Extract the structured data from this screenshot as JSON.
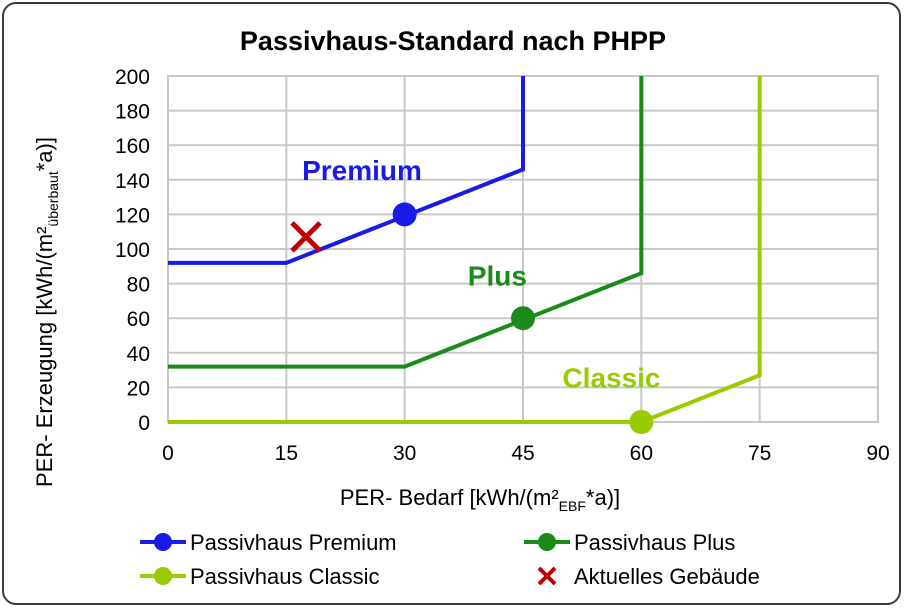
{
  "chart_data": {
    "type": "line",
    "title": "Passivhaus-Standard nach PHPP",
    "xlabel": {
      "main": "PER- Bedarf [kWh/(m²",
      "sub": "EBF",
      "tail": "*a)]"
    },
    "ylabel": {
      "main": "PER- Erzeugung [kWh/(m²",
      "sub": "überbaut",
      "tail": "*a)]"
    },
    "xlim": [
      0,
      90
    ],
    "ylim": [
      0,
      200
    ],
    "x_ticks": [
      0,
      15,
      30,
      45,
      60,
      75,
      90
    ],
    "y_ticks": [
      0,
      20,
      40,
      60,
      80,
      100,
      120,
      140,
      160,
      180,
      200
    ],
    "x_tick_labels": [
      "0",
      "15",
      "30",
      "45",
      "60",
      "75",
      "90"
    ],
    "y_tick_labels": [
      "0",
      "20",
      "40",
      "60",
      "80",
      "100",
      "120",
      "140",
      "160",
      "180",
      "200"
    ],
    "grid": true,
    "legend_position": "bottom",
    "series": [
      {
        "name": "Passivhaus Premium",
        "color": "#1a1ae6",
        "points": [
          [
            0,
            92
          ],
          [
            15,
            92
          ],
          [
            45,
            146
          ],
          [
            45,
            200
          ]
        ],
        "marker": [
          30,
          120
        ],
        "annotation": "Premium",
        "annotation_pos": [
          17,
          140
        ]
      },
      {
        "name": "Passivhaus Plus",
        "color": "#1a8a1a",
        "points": [
          [
            0,
            32
          ],
          [
            30,
            32
          ],
          [
            60,
            86
          ],
          [
            60,
            200
          ]
        ],
        "marker": [
          45,
          60
        ],
        "annotation": "Plus",
        "annotation_pos": [
          38,
          79
        ]
      },
      {
        "name": "Passivhaus Classic",
        "color": "#99cc00",
        "points": [
          [
            0,
            0
          ],
          [
            60,
            0
          ],
          [
            75,
            27
          ],
          [
            75,
            200
          ]
        ],
        "marker": [
          60,
          0
        ],
        "annotation": "Classic",
        "annotation_pos": [
          50,
          20
        ]
      }
    ],
    "current_building": {
      "name": "Aktuelles Gebäude",
      "color": "#c00000",
      "point": [
        17.5,
        107
      ]
    }
  }
}
